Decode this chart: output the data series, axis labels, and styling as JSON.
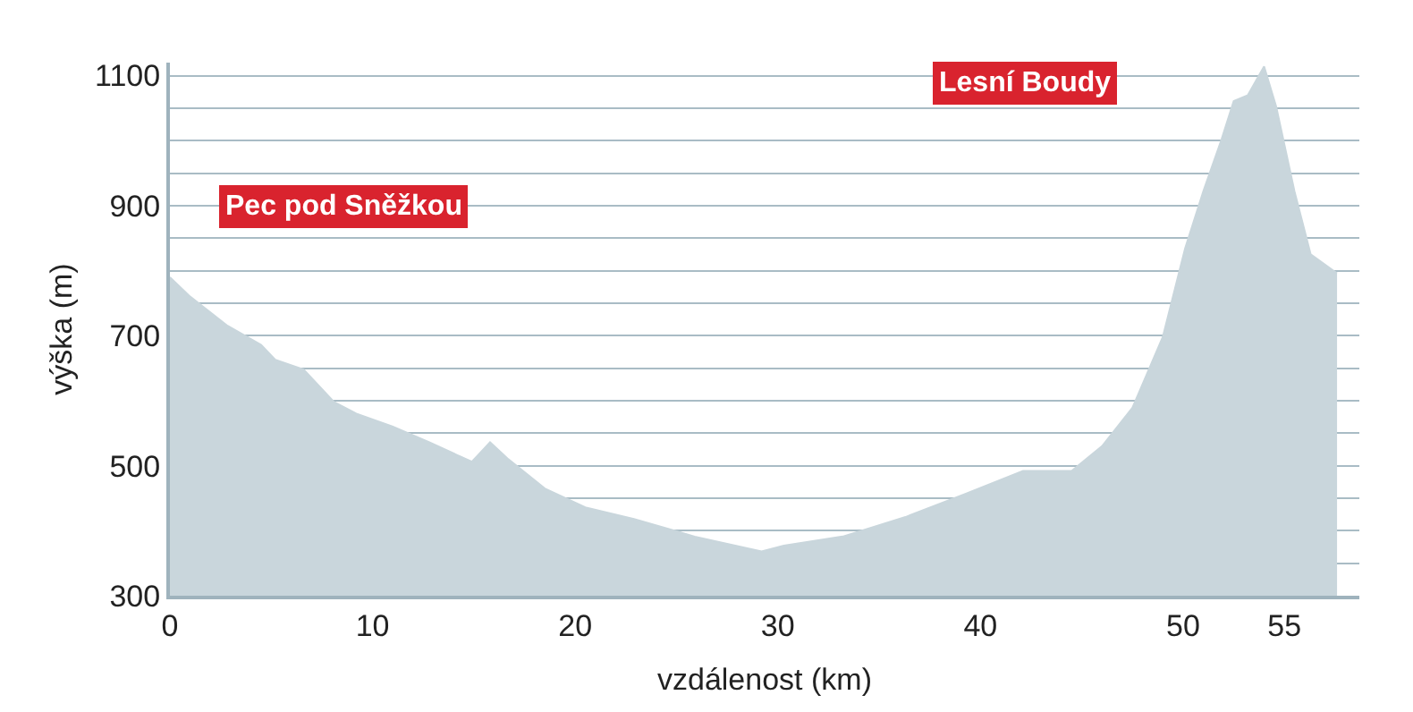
{
  "chart_data": {
    "type": "area",
    "xlabel": "vzdálenost (km)",
    "ylabel": "výška (m)",
    "x": [
      0,
      1.0,
      2.8,
      4.5,
      5.2,
      6.6,
      8.1,
      9.2,
      11.0,
      12.8,
      14.9,
      15.8,
      16.7,
      18.5,
      20.5,
      22.9,
      25.9,
      29.2,
      30.3,
      33.2,
      36.3,
      39.2,
      42.1,
      44.5,
      46.0,
      47.5,
      49.0,
      50.1,
      51.0,
      51.9,
      52.5,
      53.2,
      54.0,
      54.6,
      55.5,
      56.3,
      57.6
    ],
    "series": [
      {
        "color": "#c9d6dc",
        "values": [
          790,
          760,
          716,
          686,
          663,
          648,
          598,
          580,
          560,
          536,
          506,
          536,
          510,
          465,
          436,
          418,
          391,
          368,
          377,
          391,
          421,
          456,
          492,
          492,
          530,
          589,
          698,
          834,
          922,
          1002,
          1061,
          1070,
          1114,
          1052,
          922,
          825,
          796
        ]
      }
    ],
    "xlim": [
      0,
      58.7
    ],
    "xticks": [
      0,
      10,
      20,
      30,
      40,
      50,
      55
    ],
    "ylim": [
      300,
      1120
    ],
    "yticks": [
      300,
      {
        "value": 350,
        "label": null
      },
      {
        "value": 400,
        "label": null
      },
      {
        "value": 450,
        "label": null
      },
      500,
      {
        "value": 550,
        "label": null
      },
      {
        "value": 600,
        "label": null
      },
      {
        "value": 650,
        "label": null
      },
      700,
      {
        "value": 750,
        "label": null
      },
      {
        "value": 800,
        "label": null
      },
      {
        "value": 850,
        "label": null
      },
      900,
      {
        "value": 950,
        "label": null
      },
      {
        "value": 1000,
        "label": null
      },
      {
        "value": 1050,
        "label": null
      },
      1100
    ],
    "grid": "y",
    "annotations": [
      "Pec pod Sněžkou",
      "Lesní Boudy"
    ]
  }
}
